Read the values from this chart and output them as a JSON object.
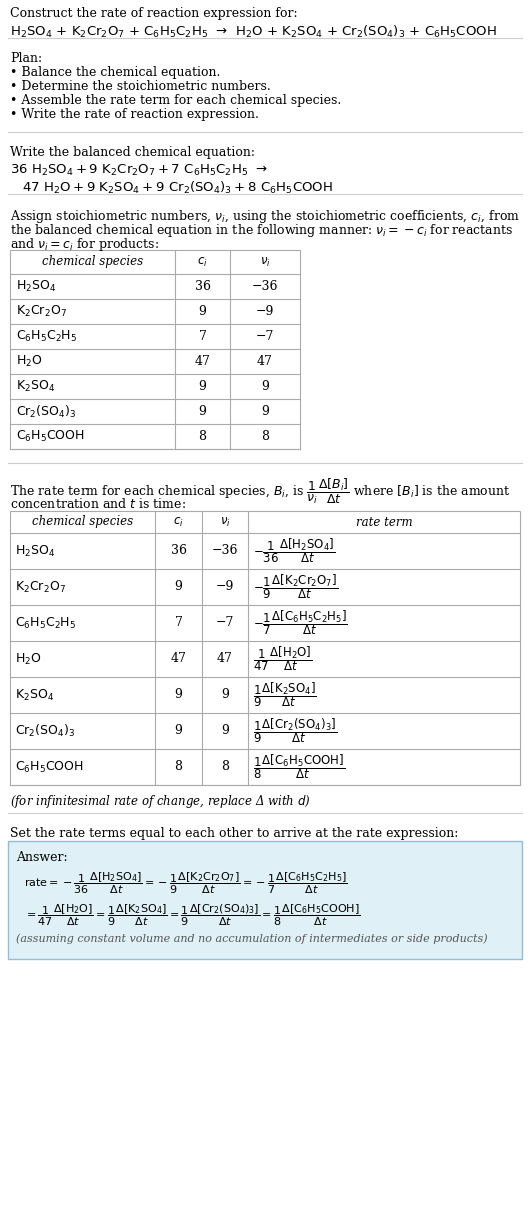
{
  "bg_color": "#ffffff",
  "text_color": "#000000",
  "table_border_color": "#aaaaaa",
  "answer_bg_color": "#dff0f7",
  "answer_border_color": "#90c0d8",
  "font_size": 9.0,
  "species": [
    "H_2SO_4",
    "K_2Cr_2O_7",
    "C_6H_5C_2H_5",
    "H_2O",
    "K_2SO_4",
    "Cr_2(SO_4)_3",
    "C_6H_5COOH"
  ],
  "ci": [
    36,
    9,
    7,
    47,
    9,
    9,
    8
  ],
  "ni": [
    -36,
    -9,
    -7,
    47,
    9,
    9,
    8
  ]
}
